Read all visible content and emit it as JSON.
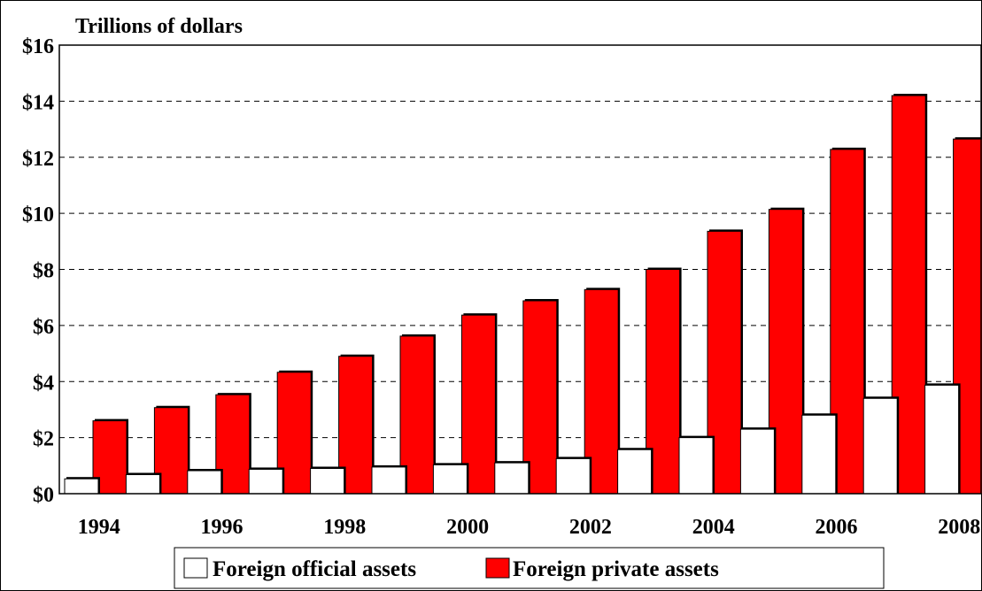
{
  "chart_data": {
    "type": "bar",
    "title": "Trillions of dollars",
    "categories": [
      "1994",
      "1995",
      "1996",
      "1997",
      "1998",
      "1999",
      "2000",
      "2001",
      "2002",
      "2003",
      "2004",
      "2005",
      "2006",
      "2007",
      "2008"
    ],
    "x_tick_labels": [
      "1994",
      "",
      "1996",
      "",
      "1998",
      "",
      "2000",
      "",
      "2002",
      "",
      "2004",
      "",
      "2006",
      "",
      "2008"
    ],
    "ylim": [
      0,
      16
    ],
    "y_ticks": [
      0,
      2,
      4,
      6,
      8,
      10,
      12,
      14,
      16
    ],
    "y_tick_labels": [
      "$0",
      "$2",
      "$4",
      "$6",
      "$8",
      "$10",
      "$12",
      "$14",
      "$16"
    ],
    "grid": true,
    "legend_position": "bottom",
    "series": [
      {
        "name": "Foreign official assets",
        "color": "#ffffff",
        "values": [
          0.53,
          0.68,
          0.82,
          0.87,
          0.9,
          0.95,
          1.03,
          1.1,
          1.25,
          1.57,
          2.0,
          2.3,
          2.8,
          3.4,
          3.87
        ]
      },
      {
        "name": "Foreign private assets",
        "color": "#ff0000",
        "values": [
          2.6,
          3.07,
          3.53,
          4.33,
          4.9,
          5.62,
          6.37,
          6.88,
          7.28,
          8.0,
          9.36,
          10.14,
          12.28,
          14.2,
          12.65
        ]
      }
    ]
  }
}
